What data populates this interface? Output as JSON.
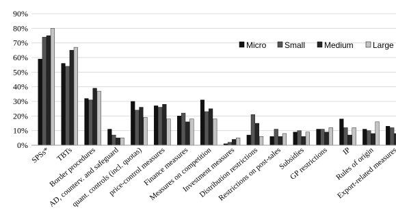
{
  "chart_data": {
    "type": "bar",
    "ylim": [
      0,
      0.9
    ],
    "yticks": [
      {
        "value": 0,
        "label": "0%"
      },
      {
        "value": 0.1,
        "label": "10%"
      },
      {
        "value": 0.2,
        "label": "20%"
      },
      {
        "value": 0.3,
        "label": "30%"
      },
      {
        "value": 0.4,
        "label": "40%"
      },
      {
        "value": 0.5,
        "label": "50%"
      },
      {
        "value": 0.6,
        "label": "60%"
      },
      {
        "value": 0.7,
        "label": "70%"
      },
      {
        "value": 0.8,
        "label": "80%"
      },
      {
        "value": 0.9,
        "label": "90%"
      }
    ],
    "legend_position": "top-right",
    "categories": [
      "SPSs*",
      "TBTs",
      "Border procedures",
      "AD, counterv. and safeguard",
      "quant. controls (incl. quotas)",
      "price-control measures",
      "Finance measures",
      "Measures on competition",
      "Investment measures",
      "Distribution restrictions",
      "Restrictions on post-sales",
      "Subsidies",
      "GP restrictions",
      "IP",
      "Rules of origin",
      "Export-related measures"
    ],
    "series": [
      {
        "name": "Micro",
        "color": "#111111",
        "values": [
          0.59,
          0.56,
          0.32,
          0.11,
          0.3,
          0.27,
          0.2,
          0.31,
          0.01,
          0.07,
          0.06,
          0.09,
          0.11,
          0.18,
          0.11,
          0.13
        ]
      },
      {
        "name": "Small",
        "color": "#555555",
        "values": [
          0.74,
          0.54,
          0.31,
          0.07,
          0.24,
          0.26,
          0.22,
          0.23,
          0.02,
          0.21,
          0.11,
          0.1,
          0.11,
          0.12,
          0.1,
          0.12
        ]
      },
      {
        "name": "Medium",
        "color": "#262626",
        "values": [
          0.75,
          0.65,
          0.39,
          0.05,
          0.26,
          0.28,
          0.16,
          0.25,
          0.04,
          0.15,
          0.06,
          0.06,
          0.09,
          0.07,
          0.08,
          0.08
        ]
      },
      {
        "name": "Large",
        "color": "#c4c4c4",
        "values": [
          0.8,
          0.67,
          0.37,
          0.05,
          0.19,
          0.18,
          0.18,
          0.18,
          0.05,
          0.06,
          0.08,
          0.09,
          0.12,
          0.12,
          0.16,
          0.09
        ]
      }
    ]
  }
}
